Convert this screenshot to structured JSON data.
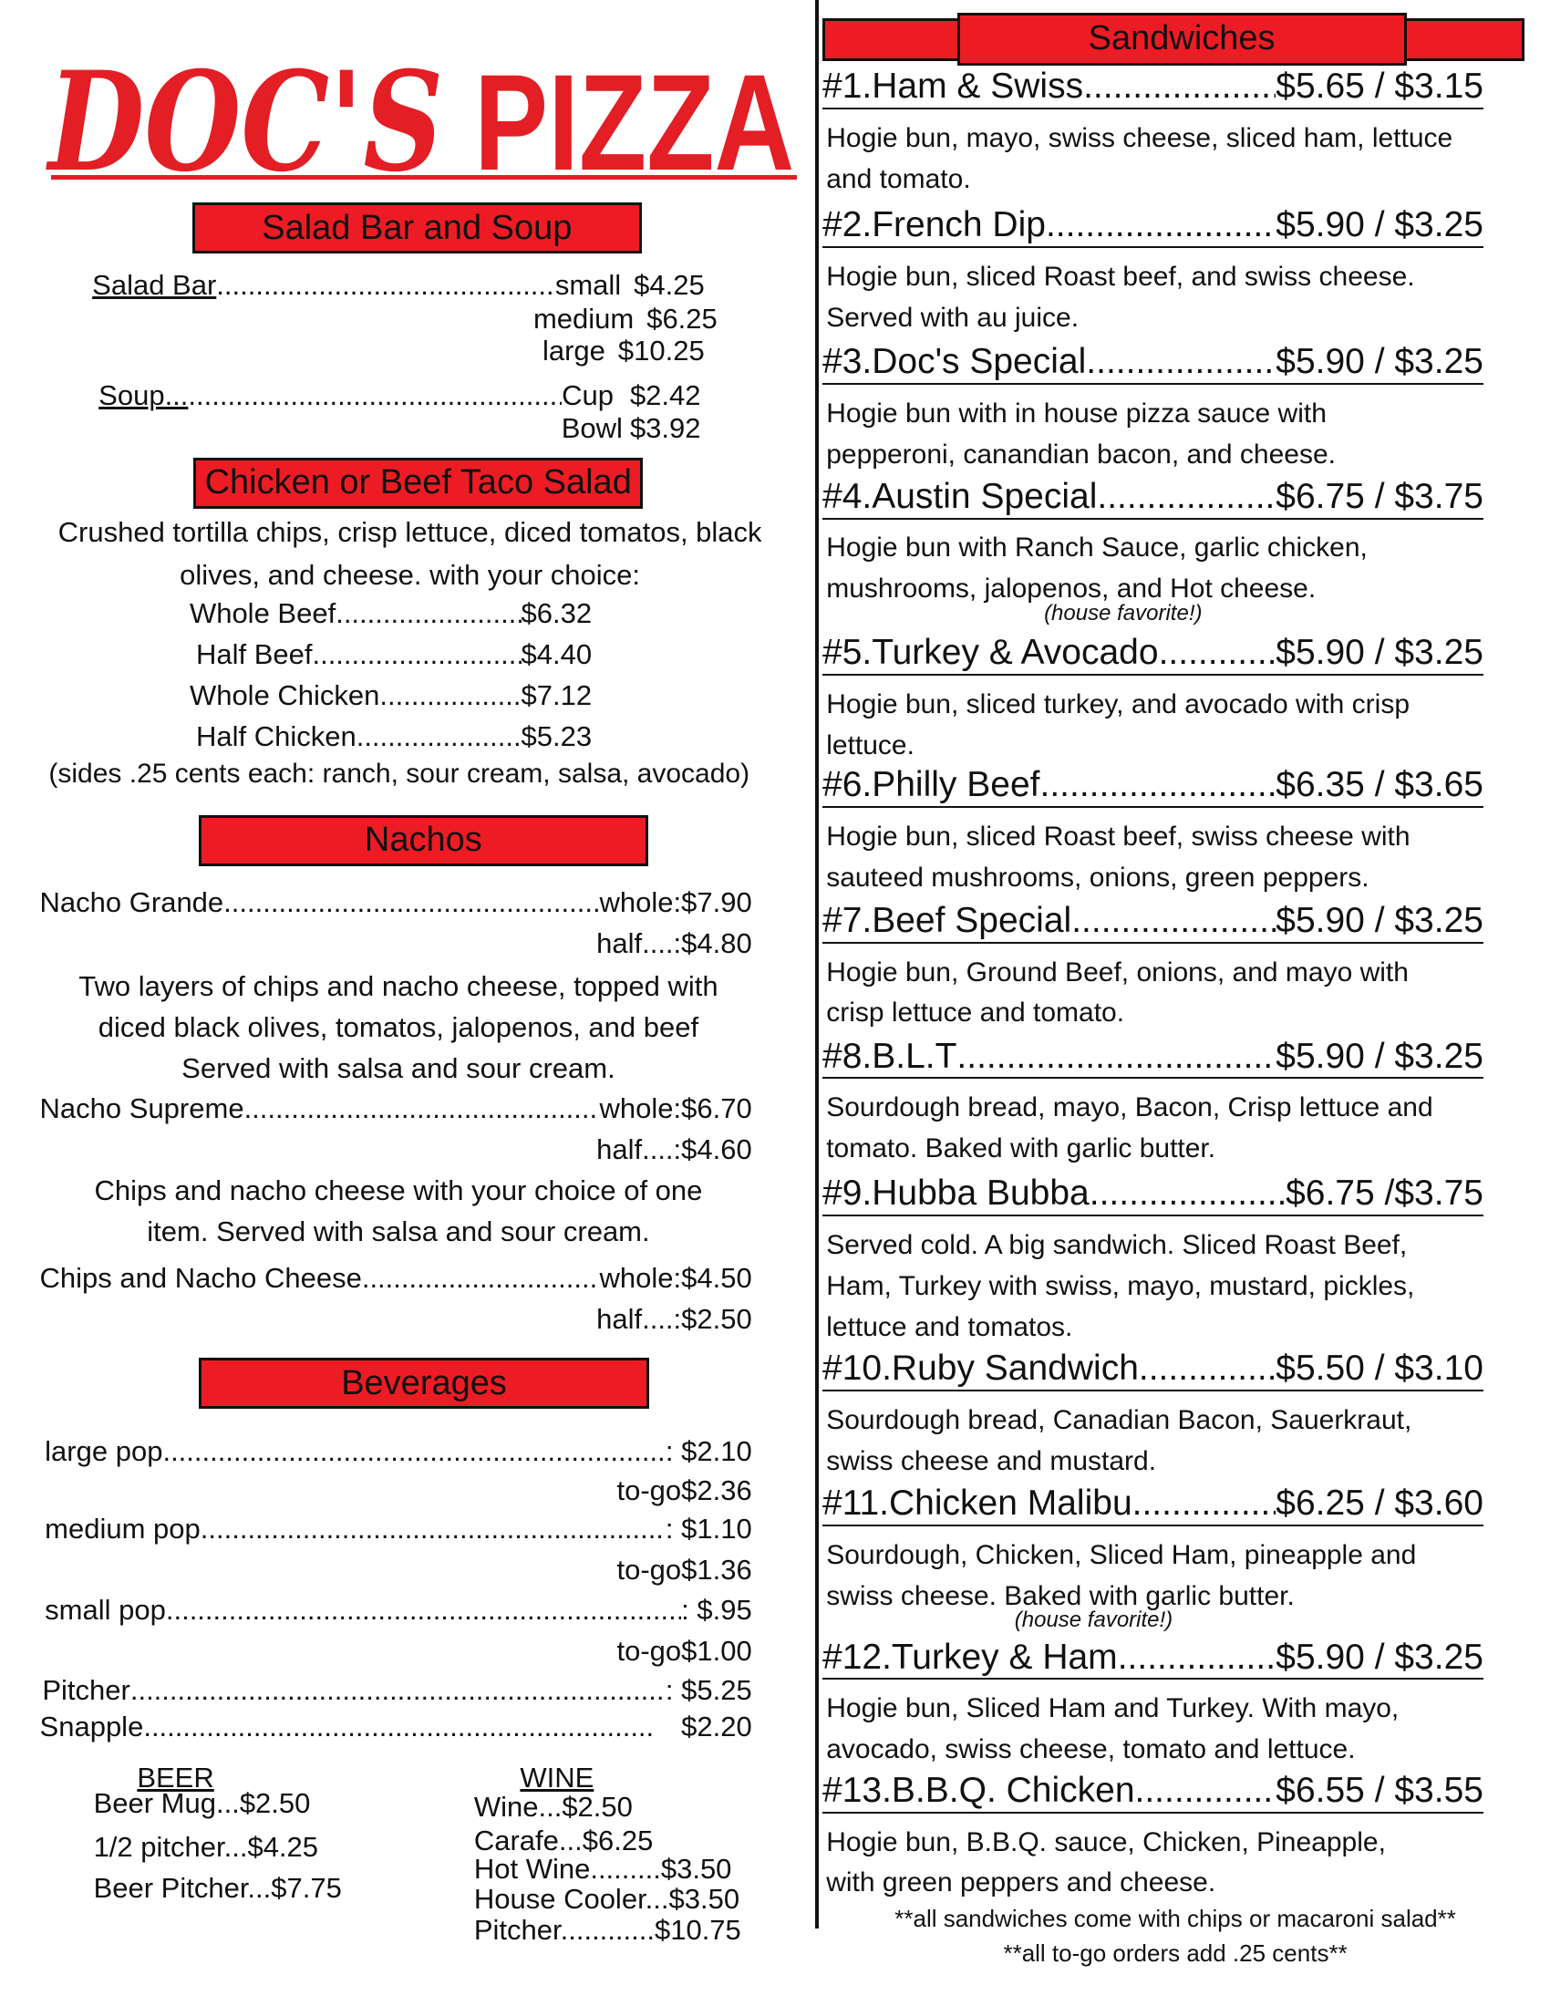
{
  "logo": "DOC'S PIZZA",
  "logo_parts": {
    "doc": "DOC'S",
    "pizza": "PIZZA"
  },
  "colors": {
    "accent": "#ed1c24",
    "logo": "#e31e24"
  },
  "salad_soup": {
    "header": "Salad Bar and Soup",
    "salad_bar": {
      "label": "Salad Bar",
      "sizes": [
        {
          "size": "small",
          "price": "$4.25"
        },
        {
          "size": "medium",
          "price": "$6.25"
        },
        {
          "size": "large",
          "price": "$10.25"
        }
      ]
    },
    "soup": {
      "label": "Soup...",
      "sizes": [
        {
          "size": "Cup",
          "price": "$2.42"
        },
        {
          "size": "Bowl",
          "price": "$3.92"
        }
      ]
    }
  },
  "taco_salad": {
    "header": "Chicken or Beef Taco Salad",
    "description": [
      "Crushed tortilla chips, crisp lettuce, diced tomatos, black",
      "olives, and cheese. with your choice:"
    ],
    "options": [
      {
        "name": "Whole Beef",
        "price": "$6.32"
      },
      {
        "name": "Half Beef",
        "price": "$4.40"
      },
      {
        "name": "Whole Chicken",
        "price": "$7.12"
      },
      {
        "name": "Half Chicken",
        "price": "$5.23"
      }
    ],
    "sides_note": "(sides .25 cents each:  ranch,  sour cream,  salsa,  avocado)"
  },
  "nachos": {
    "header": "Nachos",
    "items": [
      {
        "name": "Nacho Grande",
        "whole_label": "whole:",
        "whole": "$7.90",
        "half_label": "half....:",
        "half": "$4.80",
        "description": [
          "Two layers of chips and nacho cheese, topped with",
          "diced black olives, tomatos, jalopenos, and beef",
          "Served with salsa and sour cream."
        ]
      },
      {
        "name": "Nacho Supreme",
        "whole_label": "whole:",
        "whole": "$6.70",
        "half_label": "half....:",
        "half": "$4.60",
        "description": [
          "Chips and nacho cheese with your choice of one",
          "item. Served with salsa and sour cream."
        ]
      },
      {
        "name": "Chips and Nacho Cheese",
        "whole_label": "whole:",
        "whole": "$4.50",
        "half_label": "half....:",
        "half": "$2.50",
        "description": []
      }
    ]
  },
  "beverages": {
    "header": "Beverages",
    "pops": [
      {
        "name": "large pop",
        "price": ": $2.10",
        "togo_label": "to-go",
        "togo": "$2.36"
      },
      {
        "name": "medium pop",
        "price": ": $1.10",
        "togo_label": "to-go",
        "togo": "$1.36"
      },
      {
        "name": "small pop",
        "price": ":  $.95",
        "togo_label": "to-go",
        "togo": "$1.00"
      }
    ],
    "others": [
      {
        "name": "Pitcher",
        "price": ": $5.25"
      },
      {
        "name": "Snapple",
        "price": "$2.20"
      }
    ],
    "beer": {
      "header": "BEER",
      "items": [
        {
          "name": "Beer Mug...",
          "price": "$2.50"
        },
        {
          "name": "1/2 pitcher...",
          "price": "$4.25"
        },
        {
          "name": "Beer Pitcher...",
          "price": "$7.75"
        }
      ]
    },
    "wine": {
      "header": "WINE",
      "items": [
        {
          "name": "Wine...",
          "price": "$2.50"
        },
        {
          "name": "Carafe...",
          "price": "$6.25"
        },
        {
          "name": "Hot Wine.........",
          "price": "$3.50"
        },
        {
          "name": "House Cooler...",
          "price": "$3.50"
        },
        {
          "name": "Pitcher............",
          "price": "$10.75"
        }
      ]
    }
  },
  "sandwiches": {
    "header": "Sandwiches",
    "items": [
      {
        "number": "#1.",
        "name": "Ham & Swiss",
        "prices": "$5.65 / $3.15",
        "description": [
          "Hogie bun, mayo, swiss cheese, sliced ham, lettuce",
          "and tomato."
        ]
      },
      {
        "number": "#2.",
        "name": "French Dip",
        "prices": "$5.90 / $3.25",
        "description": [
          "Hogie bun, sliced Roast beef, and swiss cheese.",
          "Served with au juice."
        ]
      },
      {
        "number": "#3.",
        "name": "Doc's Special",
        "prices": "$5.90 / $3.25",
        "description": [
          "Hogie bun with in house pizza sauce with",
          "pepperoni, canandian bacon, and cheese."
        ]
      },
      {
        "number": "#4.",
        "name": "Austin Special",
        "prices": "$6.75 / $3.75",
        "description": [
          "Hogie bun with Ranch Sauce, garlic chicken,",
          "mushrooms, jalopenos, and Hot cheese."
        ],
        "note": "(house favorite!)"
      },
      {
        "number": "#5.",
        "name": "Turkey & Avocado",
        "prices": "$5.90 / $3.25",
        "description": [
          "Hogie bun, sliced turkey, and avocado with crisp",
          "lettuce."
        ]
      },
      {
        "number": "#6.",
        "name": "Philly Beef",
        "prices": "$6.35 / $3.65",
        "description": [
          "Hogie bun, sliced Roast beef, swiss cheese with",
          "sauteed mushrooms, onions, green peppers."
        ]
      },
      {
        "number": "#7.",
        "name": "Beef Special",
        "prices": "$5.90 / $3.25",
        "description": [
          "Hogie bun, Ground Beef, onions, and mayo with",
          "crisp lettuce and tomato."
        ]
      },
      {
        "number": "#8.",
        "name": "B.L.T",
        "prices": "$5.90 / $3.25",
        "description": [
          "Sourdough bread, mayo, Bacon, Crisp lettuce and",
          "tomato. Baked with garlic butter."
        ]
      },
      {
        "number": "#9.",
        "name": "Hubba Bubba",
        "prices": "$6.75 /$3.75",
        "description": [
          "Served cold. A big sandwich. Sliced Roast Beef,",
          "Ham, Turkey with swiss, mayo, mustard, pickles,",
          "lettuce and tomatos."
        ]
      },
      {
        "number": "#10.",
        "name": "Ruby Sandwich",
        "prices": "$5.50 / $3.10",
        "description": [
          "Sourdough bread, Canadian Bacon, Sauerkraut,",
          "swiss cheese and mustard."
        ]
      },
      {
        "number": "#11.",
        "name": "Chicken Malibu",
        "prices": "$6.25 / $3.60",
        "description": [
          "Sourdough, Chicken, Sliced Ham, pineapple and",
          "swiss cheese. Baked with garlic butter."
        ],
        "note": "(house favorite!)"
      },
      {
        "number": "#12.",
        "name": "Turkey & Ham",
        "prices": "$5.90 / $3.25",
        "description": [
          "Hogie bun, Sliced Ham and Turkey. With mayo,",
          "avocado, swiss cheese, tomato and lettuce."
        ]
      },
      {
        "number": "#13.",
        "name": "B.B.Q. Chicken",
        "prices": "$6.55 / $3.55",
        "description": [
          "Hogie bun, B.B.Q. sauce, Chicken, Pineapple,",
          "with green peppers and cheese."
        ]
      }
    ],
    "footnotes": [
      "**all sandwiches come with chips or macaroni salad**",
      "**all to-go orders add .25 cents**"
    ]
  }
}
